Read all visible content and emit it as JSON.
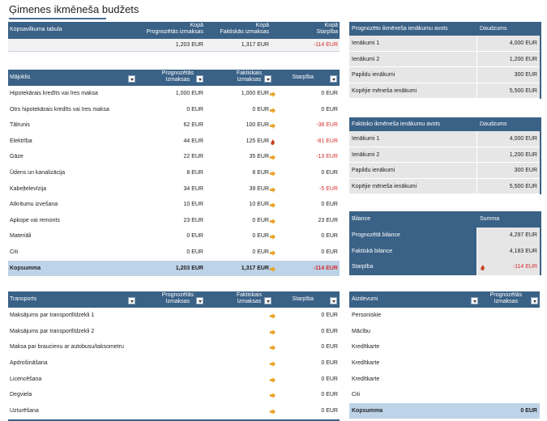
{
  "title": "Ģimenes ikmēneša budžets",
  "colors": {
    "header": "#3a6186",
    "total": "#bdd3e8",
    "negative": "#d32f2f",
    "arrow": "#e8a020",
    "fire": "#c8401e"
  },
  "summary": {
    "col1": "Kopsavilkuma tabula",
    "col2a": "Kopā",
    "col2b": "Prognozētās izmaksas",
    "col3a": "Kopā",
    "col3b": "Faktiskās izmaksas",
    "col4a": "Kopā",
    "col4b": "Starpība",
    "v2": "1,203 EUR",
    "v3": "1,317 EUR",
    "v4": "-114 EUR"
  },
  "housing": {
    "col1": "Mājoklis",
    "col2a": "Prognozētās",
    "col2b": "Izmaksas",
    "col3a": "Faktiskais",
    "col3b": "Izmaksas",
    "col4": "Starpība",
    "rows": [
      {
        "name": "Hipotekārais kredīts vai īres maksa",
        "p": "1,000 EUR",
        "f": "1,000 EUR",
        "icon": "arrow",
        "d": "0 EUR"
      },
      {
        "name": "Otrs hipotekārais kredīts vai īres maksa",
        "p": "0 EUR",
        "f": "0 EUR",
        "icon": "arrow",
        "d": "0 EUR"
      },
      {
        "name": "Tālrunis",
        "p": "62 EUR",
        "f": "100 EUR",
        "icon": "arrow",
        "d": "-38 EUR"
      },
      {
        "name": "Elektrība",
        "p": "44 EUR",
        "f": "125 EUR",
        "icon": "fire",
        "d": "-81 EUR"
      },
      {
        "name": "Gāze",
        "p": "22 EUR",
        "f": "35 EUR",
        "icon": "arrow",
        "d": "-13 EUR"
      },
      {
        "name": "Ūdens un kanalizācija",
        "p": "8 EUR",
        "f": "8 EUR",
        "icon": "arrow",
        "d": "0 EUR"
      },
      {
        "name": "Kabeļtelevīzija",
        "p": "34 EUR",
        "f": "39 EUR",
        "icon": "arrow",
        "d": "-5 EUR"
      },
      {
        "name": "Atkritumu izvešana",
        "p": "10 EUR",
        "f": "10 EUR",
        "icon": "arrow",
        "d": "0 EUR"
      },
      {
        "name": "Apkope vai remonts",
        "p": "23 EUR",
        "f": "0 EUR",
        "icon": "arrow",
        "d": "23 EUR"
      },
      {
        "name": "Materiāli",
        "p": "0 EUR",
        "f": "0 EUR",
        "icon": "arrow",
        "d": "0 EUR"
      },
      {
        "name": "Citi",
        "p": "0 EUR",
        "f": "0 EUR",
        "icon": "arrow",
        "d": "0 EUR"
      }
    ],
    "total": {
      "name": "Kopsumma",
      "p": "1,203 EUR",
      "f": "1,317 EUR",
      "icon": "arrow",
      "d": "-114 EUR"
    }
  },
  "transport": {
    "col1": "Transports",
    "col2a": "Prognozētās",
    "col2b": "Izmaksas",
    "col3a": "Faktiskais",
    "col3b": "Izmaksas",
    "col4": "Starpība",
    "rows": [
      {
        "name": "Maksājums par transportlīdzekli 1",
        "d": "0 EUR"
      },
      {
        "name": "Maksājums par transportlīdzekli 2",
        "d": "0 EUR"
      },
      {
        "name": "Maksa par braucienu ar autobusu/taksometru",
        "d": "0 EUR"
      },
      {
        "name": "Apdrošināšana",
        "d": "0 EUR"
      },
      {
        "name": "Licencēšana",
        "d": "0 EUR"
      },
      {
        "name": "Degviela",
        "d": "0 EUR"
      },
      {
        "name": "Uzturēšana",
        "d": "0 EUR"
      }
    ]
  },
  "forecast_income": {
    "col1": "Prognozēto ikmēneša ienākumu avots",
    "col2": "Daudzums",
    "rows": [
      {
        "name": "Ienākumi 1",
        "v": "4,000 EUR"
      },
      {
        "name": "Ienākumi 2",
        "v": "1,200 EUR"
      },
      {
        "name": "Papildu ienākumi",
        "v": "300 EUR"
      },
      {
        "name": "Kopējie mēneša ienākumi",
        "v": "5,500 EUR"
      }
    ]
  },
  "actual_income": {
    "col1": "Faktisko ikmēneša ienākumu avots",
    "col2": "Daudzums",
    "rows": [
      {
        "name": "Ienākumi 1",
        "v": "4,000 EUR"
      },
      {
        "name": "Ienākumi 2",
        "v": "1,200 EUR"
      },
      {
        "name": "Papildu ienākumi",
        "v": "300 EUR"
      },
      {
        "name": "Kopējie mēneša ienākumi",
        "v": "5,500 EUR"
      }
    ]
  },
  "balance": {
    "col1": "Bilance",
    "col2": "Summa",
    "rows": [
      {
        "name": "Prognozētā bilance",
        "v": "4,297 EUR"
      },
      {
        "name": "Faktiskā bilance",
        "v": "4,183 EUR"
      },
      {
        "name": "Starpība",
        "v": "-114 EUR"
      }
    ]
  },
  "loans": {
    "col1": "Aizdevumi",
    "col2a": "Prognozētās",
    "col2b": "Izmaksas",
    "rows": [
      "Personiskie",
      "Mācību",
      "Kredītkarte",
      "Kredītkarte",
      "Kredītkarte",
      "Citi"
    ],
    "total": {
      "name": "Kopsumma",
      "v": "0 EUR"
    }
  }
}
